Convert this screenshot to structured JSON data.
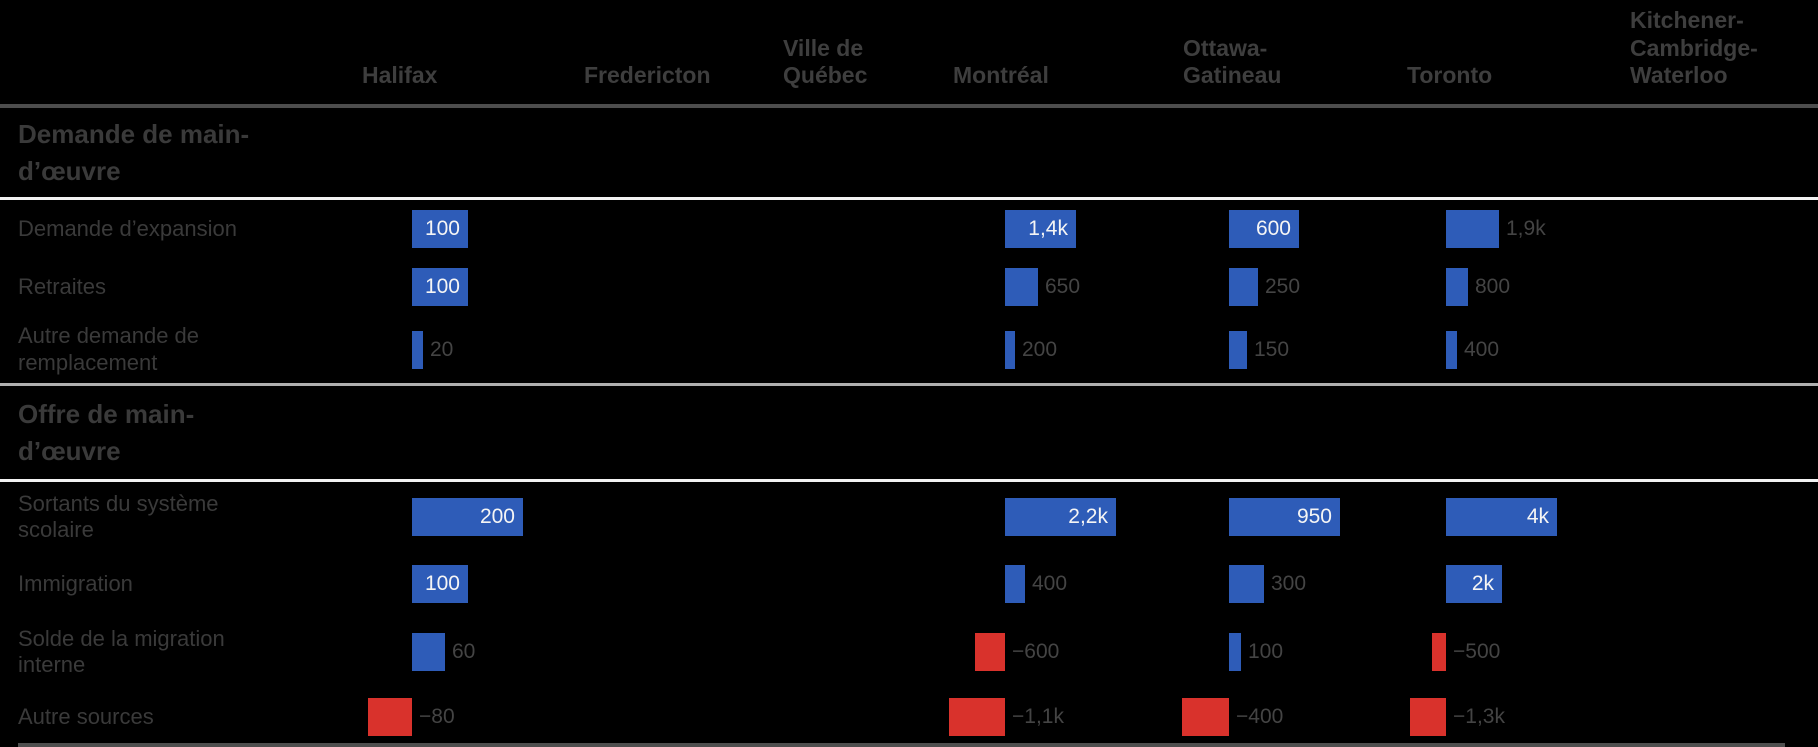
{
  "chart_data": {
    "type": "table",
    "title": "",
    "unit_note": "bars normalized per column (per-city maximum)",
    "legend_position": "none",
    "grid": "off",
    "columns": [
      "Halifax",
      "Fredericton",
      "Ville de\nQuébec",
      "Montréal",
      "Ottawa-\nGatineau",
      "Toronto",
      "Kitchener-\nCambridge-\nWaterloo"
    ],
    "sections": [
      {
        "title": "Demande de main-\nd’œuvre",
        "rows": [
          {
            "label": "Demande d’expansion",
            "cells": [
              {
                "value": 100,
                "display": "100",
                "inside": true
              },
              null,
              null,
              {
                "value": 1400,
                "display": "1,4k",
                "inside": true
              },
              {
                "value": 600,
                "display": "600",
                "inside": true
              },
              {
                "value": 1900,
                "display": "1,9k",
                "inside": false
              },
              null
            ]
          },
          {
            "label": "Retraites",
            "cells": [
              {
                "value": 100,
                "display": "100",
                "inside": true
              },
              null,
              null,
              {
                "value": 650,
                "display": "650",
                "inside": false
              },
              {
                "value": 250,
                "display": "250",
                "inside": false
              },
              {
                "value": 800,
                "display": "800",
                "inside": false
              },
              null
            ]
          },
          {
            "label": "Autre demande de\nremplacement",
            "cells": [
              {
                "value": 20,
                "display": "20",
                "inside": false
              },
              null,
              null,
              {
                "value": 200,
                "display": "200",
                "inside": false
              },
              {
                "value": 150,
                "display": "150",
                "inside": false
              },
              {
                "value": 400,
                "display": "400",
                "inside": false
              },
              null
            ]
          }
        ]
      },
      {
        "title": "Offre de main-\nd’œuvre",
        "rows": [
          {
            "label": "Sortants du système\nscolaire",
            "cells": [
              {
                "value": 200,
                "display": "200",
                "inside": true
              },
              null,
              null,
              {
                "value": 2200,
                "display": "2,2k",
                "inside": true
              },
              {
                "value": 950,
                "display": "950",
                "inside": true
              },
              {
                "value": 4000,
                "display": "4k",
                "inside": true
              },
              null
            ]
          },
          {
            "label": "Immigration",
            "cells": [
              {
                "value": 100,
                "display": "100",
                "inside": true
              },
              null,
              null,
              {
                "value": 400,
                "display": "400",
                "inside": false
              },
              {
                "value": 300,
                "display": "300",
                "inside": false
              },
              {
                "value": 2000,
                "display": "2k",
                "inside": true
              },
              null
            ]
          },
          {
            "label": "Solde de la migration\ninterne",
            "cells": [
              {
                "value": 60,
                "display": "60",
                "inside": false
              },
              null,
              null,
              {
                "value": -600,
                "display": "−600",
                "inside": false
              },
              {
                "value": 100,
                "display": "100",
                "inside": false
              },
              {
                "value": -500,
                "display": "−500",
                "inside": false
              },
              null
            ]
          },
          {
            "label": "Autre sources",
            "cells": [
              {
                "value": -80,
                "display": "−80",
                "inside": false
              },
              null,
              null,
              {
                "value": -1100,
                "display": "−1,1k",
                "inside": false
              },
              {
                "value": -400,
                "display": "−400",
                "inside": false
              },
              {
                "value": -1300,
                "display": "−1,3k",
                "inside": false
              },
              null
            ]
          }
        ]
      }
    ],
    "colors": {
      "background": "#000000",
      "positive_bar": "#2e5cb8",
      "negative_bar": "#d9322c",
      "inside_value_label": "#f5f5f5",
      "outside_value_label": "#444444",
      "row_label": "#3a3a3a",
      "section_label": "#3a3a3a",
      "column_header": "#3e3e3e",
      "header_rule": "#4d4d4d",
      "section_rule_top": "#b0b0b0",
      "section_rule_bottom": "#f2f2f2",
      "bottom_rule": "#4f4f4f"
    }
  }
}
